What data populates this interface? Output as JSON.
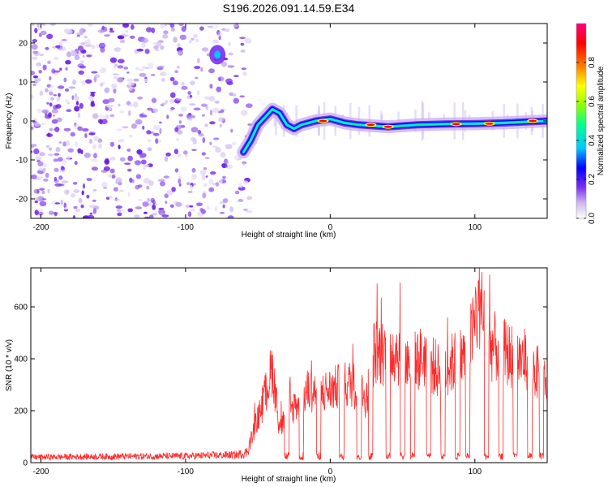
{
  "title": "S196.2026.091.14.59.E34",
  "chart_data": [
    {
      "type": "heatmap",
      "name": "spectrogram",
      "xlabel": "Height of straight line (km)",
      "ylabel": "Frequency (Hz)",
      "xlim": [
        -207,
        150
      ],
      "ylim": [
        -25,
        25
      ],
      "xticks": [
        -200,
        -100,
        0,
        100
      ],
      "yticks": [
        -20,
        -10,
        0,
        10,
        20
      ],
      "colorbar": {
        "label": "Normalized spectral amplitude",
        "range": [
          0,
          1
        ],
        "ticks": [
          0.0,
          0.2,
          0.4,
          0.6,
          0.8
        ],
        "tick_labels": [
          "0.0",
          "0.2",
          "0.4",
          "0.6",
          "0.8"
        ],
        "colors": [
          "#ffffff",
          "#cdb6f0",
          "#7a2ef0",
          "#0000ff",
          "#00c8ff",
          "#00ff90",
          "#8cff00",
          "#ffff00",
          "#ff7f00",
          "#ff0000",
          "#ff0080"
        ]
      },
      "noise_region_km": [
        -207,
        -60
      ],
      "signal_track": [
        {
          "x": -60,
          "y": -8
        },
        {
          "x": -55,
          "y": -5
        },
        {
          "x": -50,
          "y": -1
        },
        {
          "x": -45,
          "y": 1
        },
        {
          "x": -40,
          "y": 3
        },
        {
          "x": -35,
          "y": 2
        },
        {
          "x": -30,
          "y": -1
        },
        {
          "x": -25,
          "y": -2
        },
        {
          "x": -20,
          "y": -1
        },
        {
          "x": -10,
          "y": 0
        },
        {
          "x": 0,
          "y": 0.5
        },
        {
          "x": 10,
          "y": -0.5
        },
        {
          "x": 20,
          "y": -1
        },
        {
          "x": 40,
          "y": -1.5
        },
        {
          "x": 60,
          "y": -1
        },
        {
          "x": 80,
          "y": -0.8
        },
        {
          "x": 100,
          "y": -0.7
        },
        {
          "x": 120,
          "y": -0.5
        },
        {
          "x": 150,
          "y": 0
        }
      ],
      "upper_artifact": {
        "x": -78,
        "y": 17
      }
    },
    {
      "type": "line",
      "name": "snr",
      "xlabel": "Height of straight line (km)",
      "ylabel": "SNR (10 * v/v)",
      "xlim": [
        -207,
        150
      ],
      "ylim": [
        0,
        750
      ],
      "xticks": [
        -200,
        -100,
        0,
        100
      ],
      "yticks": [
        0,
        200,
        400,
        600
      ],
      "series": [
        {
          "name": "SNR",
          "color": "#ff2a2a",
          "envelope": [
            {
              "x": -207,
              "y": 25
            },
            {
              "x": -150,
              "y": 28
            },
            {
              "x": -100,
              "y": 30
            },
            {
              "x": -65,
              "y": 35
            },
            {
              "x": -58,
              "y": 45
            },
            {
              "x": -47,
              "y": 250
            },
            {
              "x": -40,
              "y": 420
            },
            {
              "x": -35,
              "y": 150
            },
            {
              "x": -25,
              "y": 250
            },
            {
              "x": -15,
              "y": 320
            },
            {
              "x": -5,
              "y": 310
            },
            {
              "x": 5,
              "y": 330
            },
            {
              "x": 15,
              "y": 350
            },
            {
              "x": 25,
              "y": 280
            },
            {
              "x": 30,
              "y": 480
            },
            {
              "x": 45,
              "y": 500
            },
            {
              "x": 55,
              "y": 430
            },
            {
              "x": 65,
              "y": 470
            },
            {
              "x": 75,
              "y": 400
            },
            {
              "x": 85,
              "y": 440
            },
            {
              "x": 95,
              "y": 480
            },
            {
              "x": 103,
              "y": 700
            },
            {
              "x": 110,
              "y": 520
            },
            {
              "x": 125,
              "y": 470
            },
            {
              "x": 135,
              "y": 450
            },
            {
              "x": 150,
              "y": 350
            }
          ]
        }
      ]
    }
  ]
}
